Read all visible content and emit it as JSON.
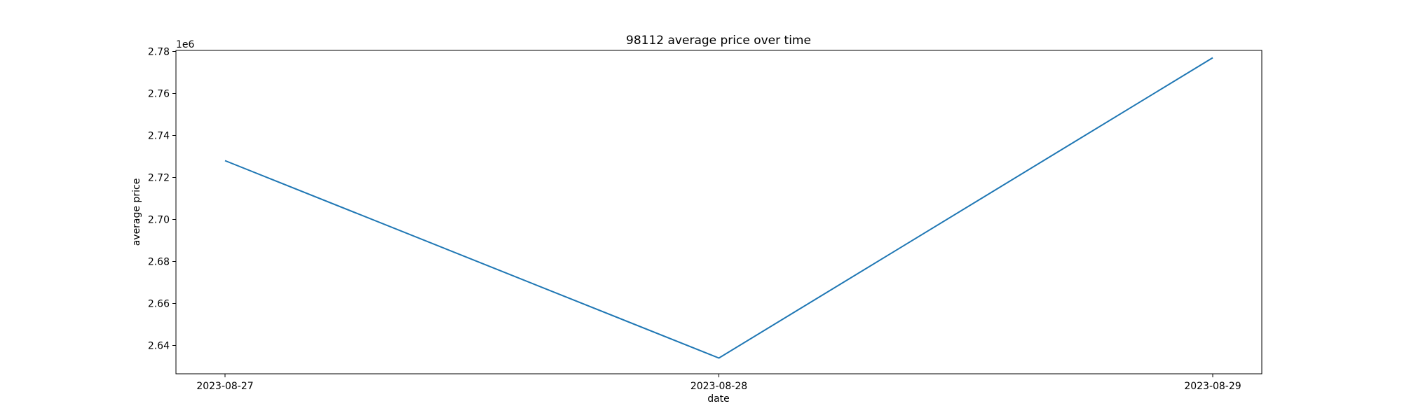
{
  "chart_data": {
    "type": "line",
    "title": "98112 average price over time",
    "xlabel": "date",
    "ylabel": "average price",
    "y_offset_label": "1e6",
    "categories": [
      "2023-08-27",
      "2023-08-28",
      "2023-08-29"
    ],
    "series": [
      {
        "values": [
          2.728,
          2.634,
          2.777
        ],
        "color": "#1f77b4"
      }
    ],
    "yticks": [
      "2.64",
      "2.66",
      "2.68",
      "2.70",
      "2.72",
      "2.74",
      "2.76",
      "2.78"
    ],
    "ylim": [
      2.6265,
      2.7805
    ],
    "grid": false
  }
}
